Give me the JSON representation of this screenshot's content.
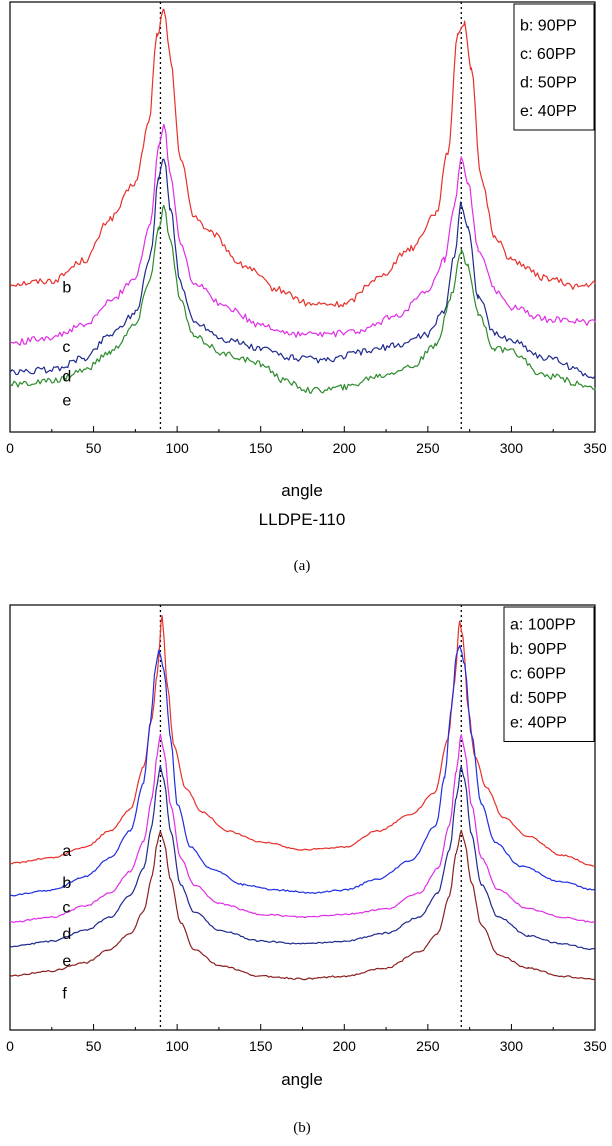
{
  "chart_data": [
    {
      "type": "line",
      "xlabel": "angle",
      "subtitle": "LLDPE-110",
      "caption": "(a)",
      "xlim": [
        0,
        350
      ],
      "x_ticks": [
        "0",
        "50",
        "100",
        "150",
        "200",
        "250",
        "300",
        "350"
      ],
      "reference_lines_x": [
        90,
        270
      ],
      "legend": {
        "position": "top-right",
        "entries": [
          "b: 90PP",
          "c: 60PP",
          "d: 50PP",
          "e: 40PP"
        ]
      },
      "series": [
        {
          "name": "b",
          "color": "#e8302a",
          "x": [
            0,
            25,
            45,
            60,
            75,
            83,
            88,
            92,
            96,
            102,
            110,
            120,
            140,
            160,
            180,
            200,
            220,
            240,
            255,
            262,
            268,
            272,
            276,
            282,
            290,
            300,
            320,
            340,
            350
          ],
          "y": [
            0.08,
            0.09,
            0.16,
            0.3,
            0.42,
            0.62,
            0.92,
            1.0,
            0.84,
            0.5,
            0.31,
            0.25,
            0.14,
            0.06,
            0.01,
            0.01,
            0.1,
            0.2,
            0.32,
            0.52,
            0.93,
            0.96,
            0.8,
            0.43,
            0.24,
            0.16,
            0.1,
            0.07,
            0.08
          ]
        },
        {
          "name": "c",
          "color": "#e02ee6",
          "x": [
            0,
            25,
            45,
            60,
            75,
            84,
            89,
            92,
            96,
            102,
            110,
            130,
            150,
            170,
            190,
            210,
            230,
            250,
            260,
            266,
            270,
            274,
            280,
            290,
            300,
            320,
            350
          ],
          "y": [
            -0.12,
            -0.1,
            -0.06,
            0.02,
            0.1,
            0.28,
            0.55,
            0.62,
            0.45,
            0.22,
            0.08,
            0.0,
            -0.06,
            -0.09,
            -0.09,
            -0.08,
            -0.03,
            0.05,
            0.16,
            0.34,
            0.5,
            0.42,
            0.2,
            0.06,
            0.0,
            -0.04,
            -0.05
          ]
        },
        {
          "name": "d",
          "color": "#1f2a8c",
          "x": [
            0,
            25,
            45,
            60,
            75,
            84,
            89,
            92,
            96,
            102,
            110,
            130,
            150,
            170,
            190,
            210,
            230,
            250,
            260,
            266,
            270,
            274,
            280,
            290,
            300,
            320,
            350
          ],
          "y": [
            -0.22,
            -0.21,
            -0.17,
            -0.09,
            -0.02,
            0.17,
            0.44,
            0.51,
            0.33,
            0.08,
            -0.05,
            -0.11,
            -0.14,
            -0.17,
            -0.18,
            -0.15,
            -0.13,
            -0.09,
            -0.01,
            0.18,
            0.35,
            0.27,
            0.04,
            -0.09,
            -0.11,
            -0.17,
            -0.23
          ]
        },
        {
          "name": "e",
          "color": "#2e8b2e",
          "x": [
            0,
            25,
            45,
            60,
            75,
            84,
            89,
            92,
            96,
            102,
            110,
            130,
            150,
            165,
            180,
            200,
            220,
            240,
            255,
            264,
            270,
            274,
            280,
            290,
            300,
            320,
            350
          ],
          "y": [
            -0.26,
            -0.25,
            -0.21,
            -0.15,
            -0.06,
            0.1,
            0.27,
            0.34,
            0.22,
            0.02,
            -0.1,
            -0.16,
            -0.19,
            -0.25,
            -0.28,
            -0.27,
            -0.23,
            -0.2,
            -0.13,
            0.04,
            0.19,
            0.14,
            -0.02,
            -0.14,
            -0.15,
            -0.23,
            -0.27
          ]
        }
      ],
      "curve_labels": [
        {
          "text": "b",
          "x": 20,
          "y": 0.07
        },
        {
          "text": "c",
          "x": 20,
          "y": -0.13
        },
        {
          "text": "d",
          "x": 20,
          "y": -0.23
        },
        {
          "text": "e",
          "x": 20,
          "y": -0.31
        }
      ]
    },
    {
      "type": "line",
      "xlabel": "angle",
      "caption": "(b)",
      "xlim": [
        0,
        350
      ],
      "x_ticks": [
        "0",
        "50",
        "100",
        "150",
        "200",
        "250",
        "300",
        "350"
      ],
      "reference_lines_x": [
        90,
        270
      ],
      "legend": {
        "position": "top-right",
        "entries": [
          "a: 100PP",
          "b: 90PP",
          "c: 60PP",
          "d: 50PP",
          "e: 40PP"
        ]
      },
      "series": [
        {
          "name": "a",
          "color": "#e8302a",
          "x": [
            0,
            25,
            45,
            60,
            72,
            80,
            85,
            88,
            91,
            94,
            98,
            105,
            115,
            130,
            150,
            175,
            200,
            220,
            240,
            254,
            262,
            266,
            269,
            271,
            274,
            278,
            285,
            295,
            310,
            330,
            350
          ],
          "y": [
            0.38,
            0.4,
            0.44,
            0.5,
            0.58,
            0.74,
            0.92,
            1.08,
            1.3,
            1.05,
            0.82,
            0.66,
            0.57,
            0.5,
            0.46,
            0.43,
            0.44,
            0.5,
            0.56,
            0.64,
            0.84,
            1.05,
            1.28,
            1.22,
            0.96,
            0.78,
            0.66,
            0.55,
            0.48,
            0.41,
            0.37
          ]
        },
        {
          "name": "b",
          "color": "#1f2ee0",
          "x": [
            0,
            25,
            45,
            60,
            72,
            80,
            84,
            87,
            89,
            92,
            96,
            100,
            108,
            120,
            140,
            160,
            180,
            200,
            220,
            240,
            255,
            260,
            264,
            267,
            269,
            272,
            276,
            282,
            290,
            305,
            330,
            350
          ],
          "y": [
            0.26,
            0.28,
            0.33,
            0.4,
            0.5,
            0.68,
            0.9,
            1.1,
            1.17,
            1.1,
            0.85,
            0.6,
            0.44,
            0.36,
            0.3,
            0.28,
            0.27,
            0.28,
            0.32,
            0.39,
            0.52,
            0.7,
            0.95,
            1.15,
            1.19,
            1.12,
            0.86,
            0.6,
            0.46,
            0.37,
            0.31,
            0.28
          ]
        },
        {
          "name": "c",
          "color": "#e02ee6",
          "x": [
            0,
            25,
            45,
            60,
            72,
            80,
            85,
            88,
            90,
            92,
            96,
            102,
            110,
            125,
            150,
            175,
            200,
            225,
            245,
            256,
            263,
            267,
            270,
            272,
            276,
            282,
            292,
            310,
            330,
            350
          ],
          "y": [
            0.16,
            0.18,
            0.22,
            0.27,
            0.35,
            0.46,
            0.62,
            0.78,
            0.86,
            0.8,
            0.6,
            0.4,
            0.3,
            0.23,
            0.19,
            0.18,
            0.19,
            0.21,
            0.27,
            0.36,
            0.52,
            0.72,
            0.86,
            0.8,
            0.6,
            0.4,
            0.28,
            0.21,
            0.18,
            0.16
          ]
        },
        {
          "name": "d",
          "color": "#1f2a8c",
          "x": [
            0,
            25,
            45,
            60,
            72,
            80,
            85,
            88,
            90,
            92,
            96,
            102,
            110,
            125,
            150,
            175,
            200,
            225,
            245,
            256,
            263,
            267,
            270,
            272,
            276,
            282,
            292,
            310,
            330,
            350
          ],
          "y": [
            0.07,
            0.09,
            0.13,
            0.18,
            0.26,
            0.36,
            0.52,
            0.67,
            0.74,
            0.69,
            0.5,
            0.3,
            0.2,
            0.13,
            0.09,
            0.08,
            0.09,
            0.12,
            0.18,
            0.27,
            0.43,
            0.62,
            0.74,
            0.69,
            0.49,
            0.3,
            0.18,
            0.11,
            0.08,
            0.06
          ]
        },
        {
          "name": "e",
          "color": "#8b2020",
          "x": [
            0,
            25,
            45,
            60,
            72,
            80,
            85,
            88,
            90,
            92,
            96,
            102,
            110,
            125,
            150,
            175,
            200,
            225,
            245,
            256,
            263,
            267,
            270,
            272,
            276,
            282,
            292,
            310,
            330,
            350
          ],
          "y": [
            -0.04,
            -0.02,
            0.01,
            0.06,
            0.12,
            0.2,
            0.33,
            0.45,
            0.5,
            0.46,
            0.32,
            0.16,
            0.06,
            0.0,
            -0.04,
            -0.05,
            -0.04,
            -0.01,
            0.05,
            0.12,
            0.26,
            0.42,
            0.5,
            0.46,
            0.31,
            0.15,
            0.04,
            -0.01,
            -0.04,
            -0.05
          ]
        }
      ],
      "curve_labels": [
        {
          "text": "a",
          "x": 20,
          "y": 0.43
        },
        {
          "text": "b",
          "x": 20,
          "y": 0.31
        },
        {
          "text": "c",
          "x": 20,
          "y": 0.22
        },
        {
          "text": "d",
          "x": 20,
          "y": 0.12
        },
        {
          "text": "e",
          "x": 20,
          "y": 0.02
        },
        {
          "text": "f",
          "x": 20,
          "y": -0.1
        }
      ]
    }
  ]
}
